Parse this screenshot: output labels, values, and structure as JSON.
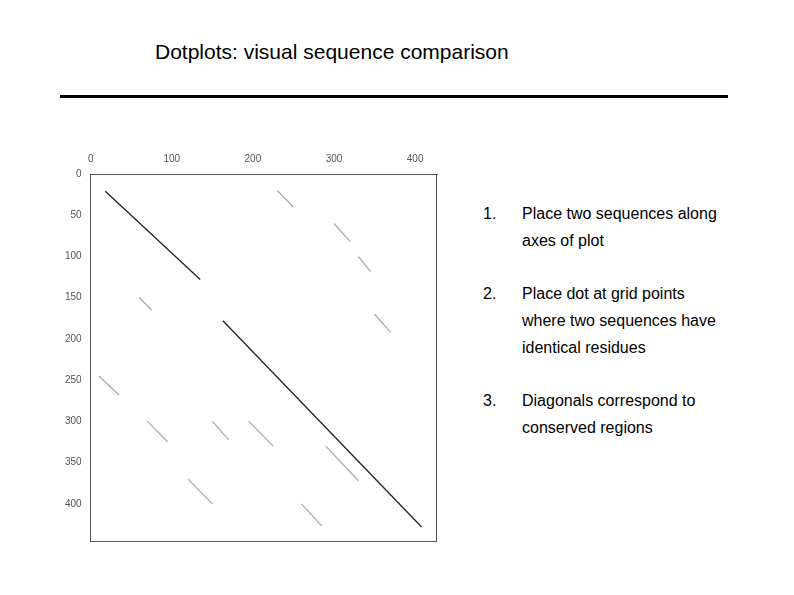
{
  "slide": {
    "title": "Dotplots: visual sequence comparison",
    "items": [
      {
        "number": "1.",
        "text": "Place two sequences along axes of plot"
      },
      {
        "number": "2.",
        "text": "Place dot at grid points where two sequences have identical residues"
      },
      {
        "number": "3.",
        "text": "Diagonals correspond to conserved regions"
      }
    ]
  },
  "chart_data": {
    "type": "scatter",
    "xlim": [
      0,
      427
    ],
    "xticks": [
      0,
      100,
      200,
      300,
      400
    ],
    "ylim": [
      0,
      445
    ],
    "yticks": [
      0,
      50,
      100,
      150,
      200,
      250,
      300,
      350,
      400
    ],
    "grid": false,
    "line_style": "solid",
    "series": [
      {
        "color": "#222222",
        "x": [
          18,
          135,
          null,
          163,
          408
        ],
        "y": [
          21,
          128,
          null,
          178,
          428
        ]
      },
      {
        "color": "#aaaaaa",
        "x": [
          10,
          35,
          null,
          195,
          225,
          null,
          290,
          330,
          null,
          300,
          320,
          null,
          230,
          250,
          null,
          70,
          95,
          null,
          120,
          150,
          null,
          260,
          285,
          null,
          350,
          370,
          null,
          150,
          170,
          null,
          330,
          345,
          null,
          60,
          75
        ],
        "y": [
          245,
          268,
          null,
          300,
          330,
          null,
          330,
          372,
          null,
          60,
          82,
          null,
          20,
          40,
          null,
          300,
          325,
          null,
          370,
          400,
          null,
          400,
          427,
          null,
          170,
          192,
          null,
          300,
          322,
          null,
          100,
          118,
          null,
          150,
          165
        ]
      }
    ]
  }
}
